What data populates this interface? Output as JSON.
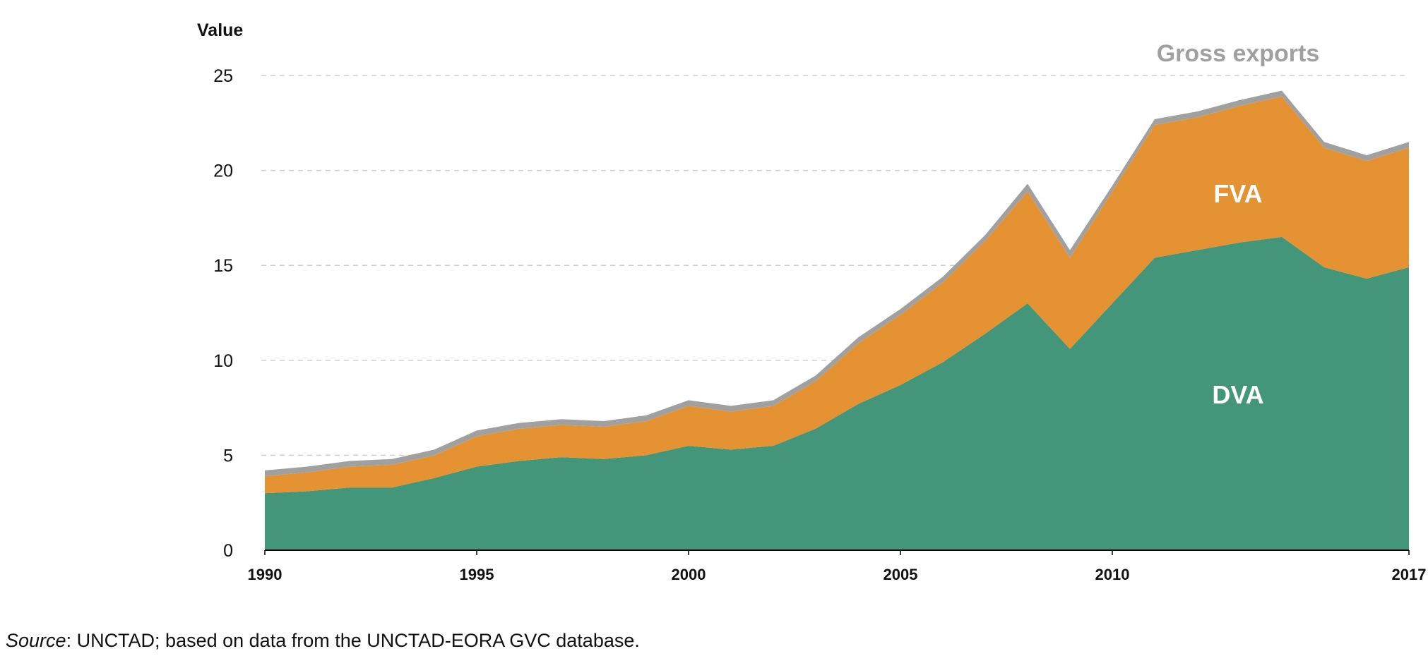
{
  "chart_data": {
    "type": "area",
    "stacked": true,
    "ylabel": "Value",
    "ylim": [
      0,
      25
    ],
    "yticks": [
      0,
      5,
      10,
      15,
      20,
      25
    ],
    "xlim": [
      1990,
      2017
    ],
    "xticks": [
      1990,
      1995,
      2000,
      2005,
      2010,
      2017
    ],
    "grid": true,
    "x": [
      1990,
      1991,
      1992,
      1993,
      1994,
      1995,
      1996,
      1997,
      1998,
      1999,
      2000,
      2001,
      2002,
      2003,
      2004,
      2005,
      2006,
      2007,
      2008,
      2009,
      2010,
      2011,
      2012,
      2013,
      2014,
      2015,
      2016,
      2017
    ],
    "series": [
      {
        "name": "DVA",
        "color": "#43967a",
        "values": [
          3.0,
          3.1,
          3.3,
          3.3,
          3.8,
          4.4,
          4.7,
          4.9,
          4.8,
          5.0,
          5.5,
          5.3,
          5.5,
          6.4,
          7.7,
          8.7,
          9.9,
          11.4,
          13.0,
          10.6,
          13.0,
          15.4,
          15.8,
          16.2,
          16.5,
          14.9,
          14.3,
          14.9
        ]
      },
      {
        "name": "FVA",
        "color": "#e59233",
        "values": [
          0.9,
          1.0,
          1.1,
          1.2,
          1.2,
          1.6,
          1.7,
          1.7,
          1.7,
          1.8,
          2.1,
          2.0,
          2.1,
          2.5,
          3.2,
          3.7,
          4.2,
          4.9,
          5.9,
          4.8,
          5.9,
          7.0,
          7.0,
          7.2,
          7.4,
          6.3,
          6.2,
          6.3
        ]
      },
      {
        "name": "Gross exports",
        "color": "#a0a0a0",
        "values": [
          0.3,
          0.3,
          0.3,
          0.3,
          0.3,
          0.3,
          0.3,
          0.3,
          0.3,
          0.3,
          0.3,
          0.3,
          0.3,
          0.3,
          0.3,
          0.3,
          0.3,
          0.3,
          0.4,
          0.4,
          0.3,
          0.3,
          0.3,
          0.3,
          0.3,
          0.3,
          0.3,
          0.3
        ]
      }
    ],
    "annotations": [
      {
        "text": "Gross exports",
        "color": "#a0a0a0"
      },
      {
        "text": "FVA",
        "color": "#ffffff"
      },
      {
        "text": "DVA",
        "color": "#ffffff"
      }
    ]
  },
  "source": {
    "prefix": "Source",
    "text": ": UNCTAD; based on data from the UNCTAD-EORA GVC database."
  }
}
